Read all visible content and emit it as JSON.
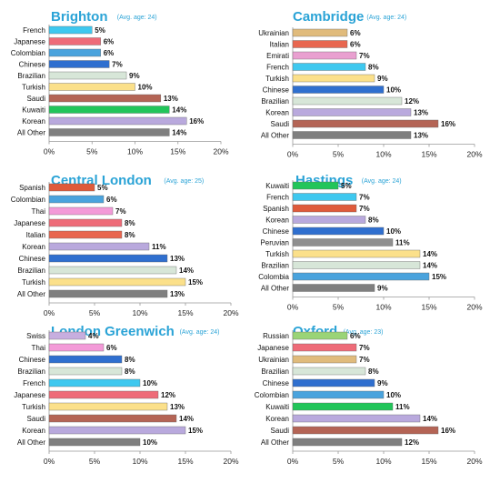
{
  "page": {
    "title_color": "#2aa3d6",
    "sub_color": "#2aa3d6"
  },
  "chart_data": [
    {
      "type": "bar",
      "orientation": "horizontal",
      "title": "Brighton",
      "subtitle": "(Avg. age: 24)",
      "categories": [
        "French",
        "Japanese",
        "Colombian",
        "Chinese",
        "Brazilian",
        "Turkish",
        "Saudi",
        "Kuwaiti",
        "Korean",
        "All Other"
      ],
      "values": [
        5,
        6,
        6,
        7,
        9,
        10,
        13,
        14,
        16,
        14
      ],
      "data_labels": [
        "5%",
        "6%",
        "6%",
        "7%",
        "9%",
        "10%",
        "13%",
        "14%",
        "16%",
        "14%"
      ],
      "xticks": [
        "0%",
        "5%",
        "10%",
        "15%",
        "20%"
      ],
      "xlim": [
        0,
        20
      ]
    },
    {
      "type": "bar",
      "orientation": "horizontal",
      "title": "Cambridge",
      "subtitle": "(Avg. age: 24)",
      "categories": [
        "Ukrainian",
        "Italian",
        "Emirati",
        "French",
        "Turkish",
        "Chinese",
        "Brazilian",
        "Korean",
        "Saudi",
        "All Other"
      ],
      "values": [
        6,
        6,
        7,
        8,
        9,
        10,
        12,
        13,
        16,
        13
      ],
      "data_labels": [
        "6%",
        "6%",
        "7%",
        "8%",
        "9%",
        "10%",
        "12%",
        "13%",
        "16%",
        "13%"
      ],
      "xticks": [
        "0%",
        "5%",
        "10%",
        "15%",
        "20%"
      ],
      "xlim": [
        0,
        20
      ]
    },
    {
      "type": "bar",
      "orientation": "horizontal",
      "title": "Central London",
      "subtitle": "(Avg. age: 25)",
      "categories": [
        "Spanish",
        "Colombian",
        "Thai",
        "Japanese",
        "Italian",
        "Korean",
        "Chinese",
        "Brazilian",
        "Turkish",
        "All Other"
      ],
      "values": [
        5,
        6,
        7,
        8,
        8,
        11,
        13,
        14,
        15,
        13
      ],
      "data_labels": [
        "5%",
        "6%",
        "7%",
        "8%",
        "8%",
        "11%",
        "13%",
        "14%",
        "15%",
        "13%"
      ],
      "xticks": [
        "0%",
        "5%",
        "10%",
        "15%",
        "20%"
      ],
      "xlim": [
        0,
        20
      ]
    },
    {
      "type": "bar",
      "orientation": "horizontal",
      "title": "Hastings",
      "subtitle": "(Avg. age: 24)",
      "categories": [
        "Kuwaiti",
        "French",
        "Spanish",
        "Korean",
        "Chinese",
        "Peruvian",
        "Turkish",
        "Brazilian",
        "Colombia",
        "All Other"
      ],
      "values": [
        5,
        7,
        7,
        8,
        10,
        11,
        14,
        14,
        15,
        9
      ],
      "data_labels": [
        "5%",
        "7%",
        "7%",
        "8%",
        "10%",
        "11%",
        "14%",
        "14%",
        "15%",
        "9%"
      ],
      "xticks": [
        "0%",
        "5%",
        "10%",
        "15%",
        "20%"
      ],
      "xlim": [
        0,
        20
      ]
    },
    {
      "type": "bar",
      "orientation": "horizontal",
      "title": "London Greenwich",
      "subtitle": "(Avg. age: 24)",
      "categories": [
        "Swiss",
        "Thai",
        "Chinese",
        "Brazilian",
        "French",
        "Japanese",
        "Turkish",
        "Saudi",
        "Korean",
        "All Other"
      ],
      "values": [
        4,
        6,
        8,
        8,
        10,
        12,
        13,
        14,
        15,
        10
      ],
      "data_labels": [
        "4%",
        "6%",
        "8%",
        "8%",
        "10%",
        "12%",
        "13%",
        "14%",
        "15%",
        "10%"
      ],
      "xticks": [
        "0%",
        "5%",
        "10%",
        "15%",
        "20%"
      ],
      "xlim": [
        0,
        20
      ]
    },
    {
      "type": "bar",
      "orientation": "horizontal",
      "title": "Oxford",
      "subtitle": "(Avg. age: 23)",
      "categories": [
        "Russian",
        "Japanese",
        "Ukrainian",
        "Brazilian",
        "Chinese",
        "Colombian",
        "Kuwaiti",
        "Korean",
        "Saudi",
        "All Other"
      ],
      "values": [
        6,
        7,
        7,
        8,
        9,
        10,
        11,
        14,
        16,
        12
      ],
      "data_labels": [
        "6%",
        "7%",
        "7%",
        "8%",
        "9%",
        "10%",
        "11%",
        "14%",
        "16%",
        "12%"
      ],
      "xticks": [
        "0%",
        "5%",
        "10%",
        "15%",
        "20%"
      ],
      "xlim": [
        0,
        20
      ]
    }
  ],
  "nationality_colors": {
    "French": "#3ec8ef",
    "Japanese": "#ee6b78",
    "Colombian": "#4aa3dd",
    "Colombia": "#4aa3dd",
    "Chinese": "#2f6fcf",
    "Brazilian": "#d7e6d8",
    "Turkish": "#fbe08a",
    "Saudi": "#b46455",
    "Kuwaiti": "#22c55a",
    "Korean": "#b9a9dd",
    "All Other": "#7f7f7f",
    "Ukrainian": "#e0bb7c",
    "Italian": "#e8664f",
    "Emirati": "#e9a0d0",
    "Spanish": "#df5a3a",
    "Thai": "#f39ad8",
    "Peruvian": "#8f8f8f",
    "Swiss": "#c7aedf",
    "Russian": "#9ad477"
  }
}
